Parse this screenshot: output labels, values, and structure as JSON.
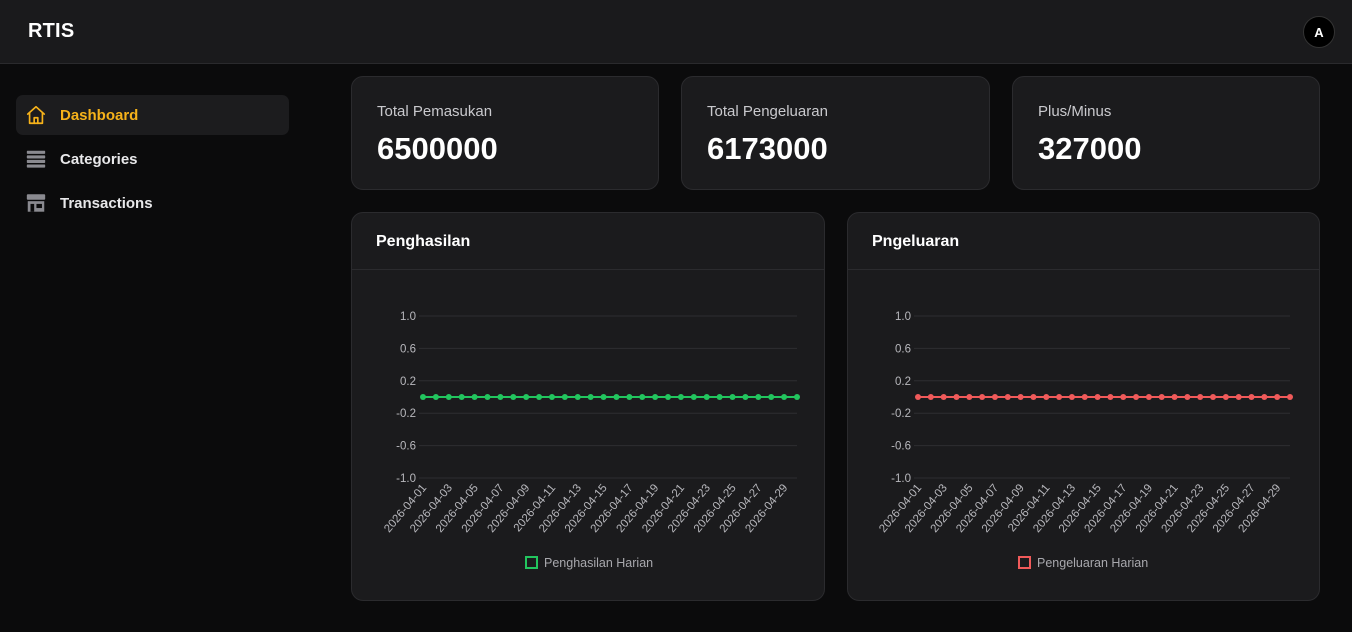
{
  "header": {
    "brand": "RTIS",
    "avatar_initial": "A"
  },
  "sidebar": {
    "items": [
      {
        "label": "Dashboard",
        "icon": "home-icon",
        "active": true
      },
      {
        "label": "Categories",
        "icon": "stack-icon",
        "active": false
      },
      {
        "label": "Transactions",
        "icon": "store-icon",
        "active": false
      }
    ]
  },
  "stats": [
    {
      "label": "Total Pemasukan",
      "value": "6500000"
    },
    {
      "label": "Total Pengeluaran",
      "value": "6173000"
    },
    {
      "label": "Plus/Minus",
      "value": "327000"
    }
  ],
  "colors": {
    "accent": "#f6b21a",
    "income": "#22c55e",
    "expense": "#f05a5a"
  },
  "charts": [
    {
      "title": "Penghasilan"
    },
    {
      "title": "Pngeluaran"
    }
  ],
  "chart_data": [
    {
      "type": "line",
      "x": [
        "2026-04-01",
        "2026-04-02",
        "2026-04-03",
        "2026-04-04",
        "2026-04-05",
        "2026-04-06",
        "2026-04-07",
        "2026-04-08",
        "2026-04-09",
        "2026-04-10",
        "2026-04-11",
        "2026-04-12",
        "2026-04-13",
        "2026-04-14",
        "2026-04-15",
        "2026-04-16",
        "2026-04-17",
        "2026-04-18",
        "2026-04-19",
        "2026-04-20",
        "2026-04-21",
        "2026-04-22",
        "2026-04-23",
        "2026-04-24",
        "2026-04-25",
        "2026-04-26",
        "2026-04-27",
        "2026-04-28",
        "2026-04-29",
        "2026-04-30"
      ],
      "x_tick_labels": [
        "2026-04-01",
        "2026-04-03",
        "2026-04-05",
        "2026-04-07",
        "2026-04-09",
        "2026-04-11",
        "2026-04-13",
        "2026-04-15",
        "2026-04-17",
        "2026-04-19",
        "2026-04-21",
        "2026-04-23",
        "2026-04-25",
        "2026-04-27",
        "2026-04-29"
      ],
      "series": [
        {
          "name": "Penghasilan Harian",
          "color": "#22c55e",
          "values": [
            0,
            0,
            0,
            0,
            0,
            0,
            0,
            0,
            0,
            0,
            0,
            0,
            0,
            0,
            0,
            0,
            0,
            0,
            0,
            0,
            0,
            0,
            0,
            0,
            0,
            0,
            0,
            0,
            0,
            0
          ]
        }
      ],
      "y_ticks": [
        1.0,
        0.6,
        0.2,
        -0.2,
        -0.6,
        -1.0
      ],
      "y_tick_labels": [
        "1.0",
        "0.6",
        "0.2",
        "-0.2",
        "-0.6",
        "-1.0"
      ],
      "ylim": [
        -1,
        1
      ],
      "grid": true,
      "legend": "bottom"
    },
    {
      "type": "line",
      "x": [
        "2026-04-01",
        "2026-04-02",
        "2026-04-03",
        "2026-04-04",
        "2026-04-05",
        "2026-04-06",
        "2026-04-07",
        "2026-04-08",
        "2026-04-09",
        "2026-04-10",
        "2026-04-11",
        "2026-04-12",
        "2026-04-13",
        "2026-04-14",
        "2026-04-15",
        "2026-04-16",
        "2026-04-17",
        "2026-04-18",
        "2026-04-19",
        "2026-04-20",
        "2026-04-21",
        "2026-04-22",
        "2026-04-23",
        "2026-04-24",
        "2026-04-25",
        "2026-04-26",
        "2026-04-27",
        "2026-04-28",
        "2026-04-29",
        "2026-04-30"
      ],
      "x_tick_labels": [
        "2026-04-01",
        "2026-04-03",
        "2026-04-05",
        "2026-04-07",
        "2026-04-09",
        "2026-04-11",
        "2026-04-13",
        "2026-04-15",
        "2026-04-17",
        "2026-04-19",
        "2026-04-21",
        "2026-04-23",
        "2026-04-25",
        "2026-04-27",
        "2026-04-29"
      ],
      "series": [
        {
          "name": "Pengeluaran Harian",
          "color": "#f05a5a",
          "values": [
            0,
            0,
            0,
            0,
            0,
            0,
            0,
            0,
            0,
            0,
            0,
            0,
            0,
            0,
            0,
            0,
            0,
            0,
            0,
            0,
            0,
            0,
            0,
            0,
            0,
            0,
            0,
            0,
            0,
            0
          ]
        }
      ],
      "y_ticks": [
        1.0,
        0.6,
        0.2,
        -0.2,
        -0.6,
        -1.0
      ],
      "y_tick_labels": [
        "1.0",
        "0.6",
        "0.2",
        "-0.2",
        "-0.6",
        "-1.0"
      ],
      "ylim": [
        -1,
        1
      ],
      "grid": true,
      "legend": "bottom"
    }
  ]
}
